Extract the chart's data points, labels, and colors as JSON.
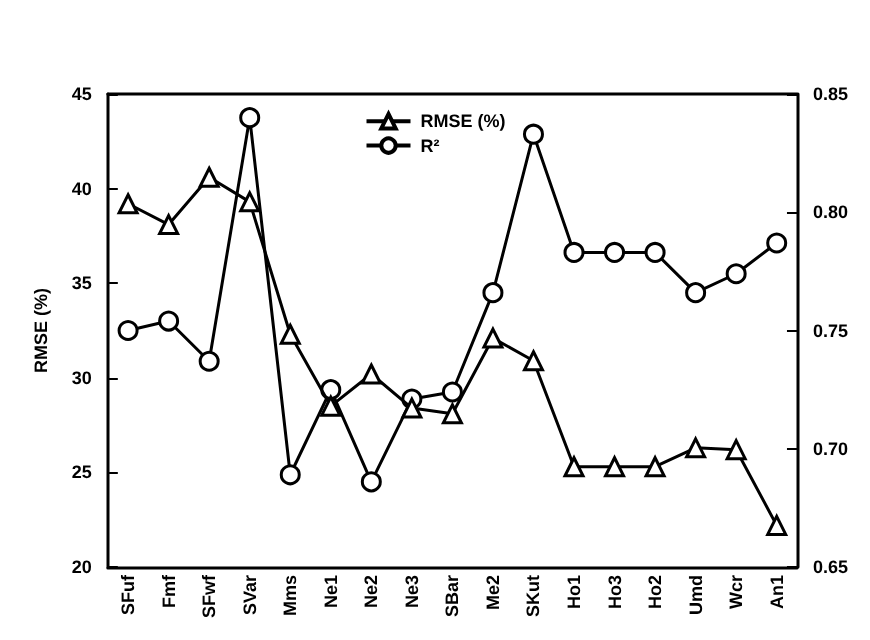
{
  "chart_data": {
    "type": "line",
    "ylabel": "RMSE (%)",
    "categories": [
      "SFuf",
      "Fmf",
      "SFwf",
      "SVar",
      "Mms",
      "Ne1",
      "Ne2",
      "Ne3",
      "SBar",
      "Me2",
      "SKut",
      "Ho1",
      "Ho3",
      "Ho2",
      "Umd",
      "Wcr",
      "An1"
    ],
    "series": [
      {
        "name": "RMSE (%)",
        "color": "#000000",
        "marker": "triangle",
        "values": [
          39.2,
          38.1,
          40.6,
          39.3,
          32.3,
          28.5,
          30.2,
          28.4,
          28.1,
          32.1,
          30.9,
          25.3,
          25.3,
          25.3,
          26.3,
          26.2,
          22.2
        ]
      },
      {
        "name": "R²",
        "color": "#000000",
        "marker": "circle",
        "axis": "y2",
        "values": [
          0.75,
          0.754,
          0.737,
          0.84,
          0.689,
          0.725,
          0.686,
          0.721,
          0.724,
          0.766,
          0.833,
          0.783,
          0.783,
          0.783,
          0.766,
          0.774,
          0.787
        ]
      }
    ],
    "ylim": [
      20,
      45
    ],
    "yticks": [
      20,
      25,
      30,
      35,
      40,
      45
    ],
    "y2lim": [
      0.65,
      0.85
    ],
    "y2ticks": [
      {
        "value": 0.65,
        "label": "0.65"
      },
      {
        "value": 0.7,
        "label": "0.70"
      },
      {
        "value": 0.75,
        "label": "0.75"
      },
      {
        "value": 0.8,
        "label": "0.80"
      },
      {
        "value": 0.85,
        "label": "0.85"
      }
    ],
    "grid": false,
    "legend": "top"
  }
}
